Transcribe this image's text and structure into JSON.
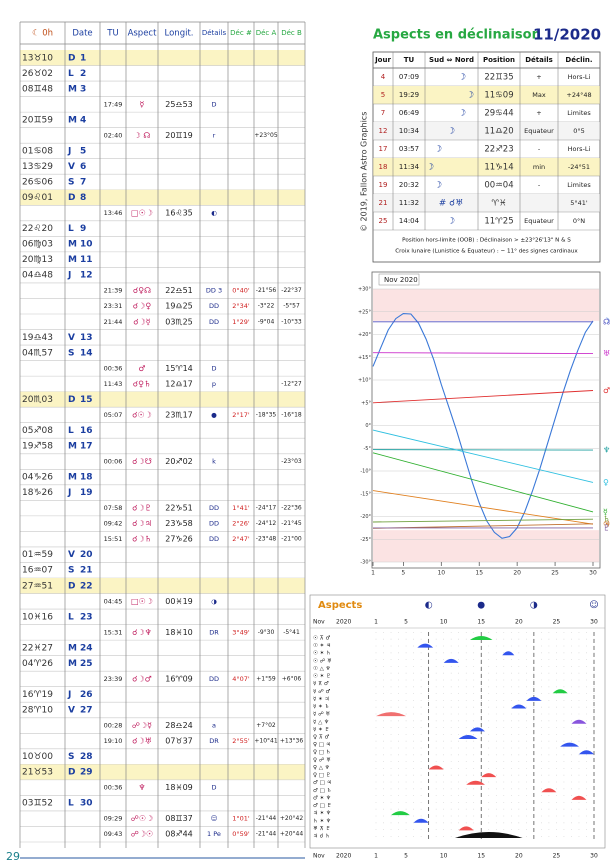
{
  "page_number": 29,
  "copyright": "© 2019, Fallon Astro Graphics",
  "table": {
    "headers": {
      "moon": "☾ 0h",
      "date": "Date",
      "tu": "TU",
      "aspect": "Aspect",
      "longit": "Longit.",
      "details": "Détails",
      "dec": "Déc #",
      "dec_a": "Déc A",
      "dec_b": "Déc B"
    },
    "rows": [
      {
        "moon": "13♉10",
        "weekday": "D",
        "day": 1,
        "highlight": true
      },
      {
        "moon": "26♉02",
        "weekday": "L",
        "day": 2
      },
      {
        "moon": "08♊48",
        "weekday": "M",
        "day": 3
      },
      {
        "tu": "17:49",
        "aspect": "☿",
        "longit": "25♎53",
        "details": "D"
      },
      {
        "moon": "20♊59",
        "weekday": "M",
        "day": 4
      },
      {
        "tu": "02:40",
        "aspect": "☽ ☊",
        "longit": "20♊19",
        "details": "r",
        "dec_a": "+23°05"
      },
      {
        "moon": "01♋08",
        "weekday": "J",
        "day": 5
      },
      {
        "moon": "13♋29",
        "weekday": "V",
        "day": 6
      },
      {
        "moon": "26♋06",
        "weekday": "S",
        "day": 7
      },
      {
        "moon": "09♌01",
        "weekday": "D",
        "day": 8,
        "highlight": true
      },
      {
        "tu": "13:46",
        "aspect": "□☉☽",
        "longit": "16♌35",
        "details": "◐"
      },
      {
        "moon": "22♌20",
        "weekday": "L",
        "day": 9
      },
      {
        "moon": "06♍03",
        "weekday": "M",
        "day": 10
      },
      {
        "moon": "20♍13",
        "weekday": "M",
        "day": 11
      },
      {
        "moon": "04♎48",
        "weekday": "J",
        "day": 12
      },
      {
        "tu": "21:39",
        "aspect": "☌♀☊",
        "longit": "22♎51",
        "details": "DD 3",
        "dec": "0°40'",
        "dec_a": "-21°56",
        "dec_b": "-22°37"
      },
      {
        "tu": "23:31",
        "aspect": "☌☽♀",
        "longit": "19♎25",
        "details": "DD",
        "dec": "2°34'",
        "dec_a": "-3°22",
        "dec_b": "-5°57"
      },
      {
        "tu": "21:44",
        "aspect": "☌☽☿",
        "longit": "03♏25",
        "details": "DD",
        "dec": "1°29'",
        "dec_a": "-9°04",
        "dec_b": "-10°33"
      },
      {
        "moon": "19♎43",
        "weekday": "V",
        "day": 13
      },
      {
        "moon": "04♏57",
        "weekday": "S",
        "day": 14
      },
      {
        "tu": "00:36",
        "aspect": "♂",
        "longit": "15♈14",
        "details": "D"
      },
      {
        "tu": "11:43",
        "aspect": "☌♀♄",
        "longit": "12♎17",
        "details": "p",
        "dec_b": "-12°27"
      },
      {
        "moon": "20♏03",
        "weekday": "D",
        "day": 15,
        "highlight": true
      },
      {
        "tu": "05:07",
        "aspect": "☌☉☽",
        "longit": "23♏17",
        "details": "●",
        "dec": "2°17'",
        "dec_a": "-18°35",
        "dec_b": "-16°18"
      },
      {
        "moon": "05♐08",
        "weekday": "L",
        "day": 16
      },
      {
        "moon": "19♐58",
        "weekday": "M",
        "day": 17
      },
      {
        "tu": "00:06",
        "aspect": "☌☽☋",
        "longit": "20♐02",
        "details": "k",
        "dec_b": "-23°03"
      },
      {
        "moon": "04♑26",
        "weekday": "M",
        "day": 18
      },
      {
        "moon": "18♑26",
        "weekday": "J",
        "day": 19
      },
      {
        "tu": "07:58",
        "aspect": "☌☽♇",
        "longit": "22♑51",
        "details": "DD",
        "dec": "1°41'",
        "dec_a": "-24°17",
        "dec_b": "-22°36"
      },
      {
        "tu": "09:42",
        "aspect": "☌☽♃",
        "longit": "23♑58",
        "details": "DD",
        "dec": "2°26'",
        "dec_a": "-24°12",
        "dec_b": "-21°45"
      },
      {
        "tu": "15:51",
        "aspect": "☌☽♄",
        "longit": "27♑26",
        "details": "DD",
        "dec": "2°47'",
        "dec_a": "-23°48",
        "dec_b": "-21°00"
      },
      {
        "moon": "01♒59",
        "weekday": "V",
        "day": 20
      },
      {
        "moon": "16♒07",
        "weekday": "S",
        "day": 21
      },
      {
        "moon": "27♒51",
        "weekday": "D",
        "day": 22,
        "highlight": true
      },
      {
        "tu": "04:45",
        "aspect": "□☉☽",
        "longit": "00♓19",
        "details": "◑"
      },
      {
        "moon": "10♓16",
        "weekday": "L",
        "day": 23
      },
      {
        "tu": "15:31",
        "aspect": "☌☽♆",
        "longit": "18♓10",
        "details": "DR",
        "dec": "3°49'",
        "dec_a": "-9°30",
        "dec_b": "-5°41"
      },
      {
        "moon": "22♓27",
        "weekday": "M",
        "day": 24
      },
      {
        "moon": "04♈26",
        "weekday": "M",
        "day": 25
      },
      {
        "tu": "23:39",
        "aspect": "☌☽♂",
        "longit": "16♈09",
        "details": "DD",
        "dec": "4°07'",
        "dec_a": "+1°59",
        "dec_b": "+6°06"
      },
      {
        "moon": "16♈19",
        "weekday": "J",
        "day": 26
      },
      {
        "moon": "28♈10",
        "weekday": "V",
        "day": 27
      },
      {
        "tu": "00:28",
        "aspect": "☍☽☿",
        "longit": "28♎24",
        "details": "a",
        "dec_a": "+7°02"
      },
      {
        "tu": "19:10",
        "aspect": "☌☽♅",
        "longit": "07♉37",
        "details": "DR",
        "dec": "2°55'",
        "dec_a": "+10°41",
        "dec_b": "+13°36"
      },
      {
        "moon": "10♉00",
        "weekday": "S",
        "day": 28
      },
      {
        "moon": "21♉53",
        "weekday": "D",
        "day": 29,
        "highlight": true
      },
      {
        "tu": "00:36",
        "aspect": "♆",
        "longit": "18♓09",
        "details": "D"
      },
      {
        "moon": "03♊52",
        "weekday": "L",
        "day": 30
      },
      {
        "tu": "09:29",
        "aspect": "☍☉☽",
        "longit": "08♊37",
        "details": "☺",
        "dec": "1°01'",
        "dec_a": "-21°44",
        "dec_b": "+20°42"
      },
      {
        "tu": "09:43",
        "aspect": "☍☽☉",
        "longit": "08♐44",
        "details": "1 Pe",
        "dec": "0°59'",
        "dec_a": "-21°44",
        "dec_b": "+20°44"
      }
    ]
  },
  "declination_table": {
    "title": "Aspects en déclinaison",
    "period": "11/2020",
    "headers": {
      "jour": "Jour",
      "tu": "TU",
      "sud_nord": "Sud ⇔ Nord",
      "position": "Position",
      "details": "Détails",
      "declin": "Déclin."
    },
    "rows": [
      {
        "jour": 4,
        "tu": "07:09",
        "sud_nord": "☽",
        "position": "22♊35",
        "details": "+",
        "declin": "Hors-Li"
      },
      {
        "jour": 5,
        "tu": "19:29",
        "sud_nord": "☽",
        "position": "11♋09",
        "details": "Max",
        "declin": "+24°48",
        "highlight": true
      },
      {
        "jour": 7,
        "tu": "06:49",
        "sud_nord": "☽",
        "position": "29♋44",
        "details": "+",
        "declin": "Limites"
      },
      {
        "jour": 12,
        "tu": "10:34",
        "sud_nord": "☽",
        "position": "11♎20",
        "details": "Equateur",
        "declin": "0°5"
      },
      {
        "jour": 17,
        "tu": "03:57",
        "sud_nord": "☽",
        "position": "22♐23",
        "details": "-",
        "declin": "Hors-Li"
      },
      {
        "jour": 18,
        "tu": "11:34",
        "sud_nord": "☽",
        "position": "11♑14",
        "details": "min",
        "declin": "-24°51",
        "highlight": true
      },
      {
        "jour": 19,
        "tu": "20:32",
        "sud_nord": "☽",
        "position": "00♒04",
        "details": "-",
        "declin": "Limites"
      },
      {
        "jour": 21,
        "tu": "11:32",
        "sud_nord": "# ☌♅",
        "position": "♈♓",
        "declin": "5°41'"
      },
      {
        "jour": 25,
        "tu": "14:04",
        "sud_nord": "☽",
        "position": "11♈25",
        "details": "Equateur",
        "declin": "0°N"
      }
    ],
    "notes": [
      "Position hors-limite (OOB) : Déclinaison > ±23°26'13\" N & S",
      "Croix lunaire (Lunistice & Equateur) : ~ 11° des signes cardinaux"
    ]
  },
  "chart_data": [
    {
      "type": "line",
      "title": "Nov 2020",
      "x": [
        1,
        2,
        3,
        4,
        5,
        6,
        7,
        8,
        9,
        10,
        11,
        12,
        13,
        14,
        15,
        16,
        17,
        18,
        19,
        20,
        21,
        22,
        23,
        24,
        25,
        26,
        27,
        28,
        29,
        30
      ],
      "xlim": [
        1,
        30
      ],
      "xticks": [
        1,
        5,
        10,
        15,
        20,
        25,
        30
      ],
      "ylim": [
        -30,
        30
      ],
      "yticks": [
        {
          "value": 30,
          "label": "+30°"
        },
        {
          "value": 25,
          "label": "+25°"
        },
        {
          "value": 20,
          "label": "+20°"
        },
        {
          "value": 15,
          "label": "+15°"
        },
        {
          "value": 10,
          "label": "+10°"
        },
        {
          "value": 5,
          "label": "+5°"
        },
        {
          "value": 0,
          "label": "0°"
        },
        {
          "value": -5,
          "label": "-5°"
        },
        {
          "value": -10,
          "label": "-10°"
        },
        {
          "value": -15,
          "label": "-15°"
        },
        {
          "value": -20,
          "label": "-20°"
        },
        {
          "value": -25,
          "label": "-25°"
        },
        {
          "value": -30,
          "label": "-30°"
        }
      ],
      "series": [
        {
          "name": "☽",
          "color": "#3a78d8",
          "values": [
            13,
            17,
            21,
            23.5,
            24.6,
            24.5,
            22.5,
            19,
            14.5,
            9,
            4,
            -1,
            -6.5,
            -12,
            -17,
            -21,
            -23.5,
            -24.8,
            -24.4,
            -22.5,
            -19,
            -14.5,
            -9.5,
            -4,
            1.5,
            7,
            12,
            16.5,
            20.5,
            23
          ]
        },
        {
          "name": "☊",
          "color": "#5050c0",
          "x": [
            1,
            30
          ],
          "values": [
            22.8,
            22.8
          ]
        },
        {
          "name": "♅",
          "color": "#cc33cc",
          "x": [
            1,
            30
          ],
          "values": [
            16,
            15.8
          ]
        },
        {
          "name": "♂",
          "color": "#e03030",
          "x": [
            1,
            30
          ],
          "values": [
            5,
            7.7
          ]
        },
        {
          "name": "♆",
          "color": "#20a0a0",
          "x": [
            1,
            30
          ],
          "values": [
            -5.3,
            -5.4
          ]
        },
        {
          "name": "♀",
          "color": "#30c0e0",
          "x": [
            1,
            30
          ],
          "values": [
            -1,
            -12.5
          ]
        },
        {
          "name": "☿",
          "color": "#30b030",
          "x": [
            1,
            30
          ],
          "values": [
            -6,
            -19
          ]
        },
        {
          "name": "☉",
          "color": "#e08020",
          "x": [
            1,
            30
          ],
          "values": [
            -14.3,
            -21.7
          ]
        },
        {
          "name": "♄",
          "color": "#70a040",
          "x": [
            1,
            30
          ],
          "values": [
            -21.2,
            -20.6
          ]
        },
        {
          "name": "♃",
          "color": "#c07030",
          "x": [
            1,
            30
          ],
          "values": [
            -22.6,
            -21.6
          ]
        },
        {
          "name": "♇",
          "color": "#8060a0",
          "x": [
            1,
            30
          ],
          "values": [
            -22.5,
            -22.5
          ]
        }
      ]
    },
    {
      "type": "timeline",
      "title": "Aspects",
      "month": "Nov",
      "year": 2020,
      "xlim": [
        1,
        30
      ],
      "xticks": [
        1,
        5,
        10,
        15,
        20,
        25,
        30
      ],
      "phases": [
        {
          "symbol": "◐",
          "day": 8
        },
        {
          "symbol": "●",
          "day": 15
        },
        {
          "symbol": "◑",
          "day": 22
        },
        {
          "symbol": "☺",
          "day": 30
        }
      ],
      "rows": [
        {
          "label": "☉ ⊼ ♂",
          "start": 13.5,
          "end": 16.5,
          "color": "#22cc44"
        },
        {
          "label": "☉ ✶ ♃",
          "start": 6.5,
          "end": 8.6,
          "color": "#3355ee"
        },
        {
          "label": "☉ ✶ ♄",
          "start": 17.8,
          "end": 19.4,
          "color": "#3355ee"
        },
        {
          "label": "☉ ☍ ♅",
          "start": 10,
          "end": 12,
          "color": "#3355ee"
        },
        {
          "label": "☉ △ ♆"
        },
        {
          "label": "☉ ✶ ♇"
        },
        {
          "label": "☿ ⊼ ♂"
        },
        {
          "label": "☿ ☍ ♂",
          "start": 24.5,
          "end": 26.5,
          "color": "#22cc44"
        },
        {
          "label": "☿ ✶ ♃",
          "start": 21,
          "end": 23,
          "color": "#3355ee"
        },
        {
          "label": "☿ ✶ ♄",
          "start": 19,
          "end": 21,
          "color": "#3355ee"
        },
        {
          "label": "☿ ☍ ♅",
          "start": 1,
          "end": 5,
          "color": "#f07070"
        },
        {
          "label": "☿ △ ♆",
          "start": 27,
          "end": 29,
          "color": "#8855dd"
        },
        {
          "label": "☿ ✶ ♇",
          "start": 13.5,
          "end": 15.5,
          "color": "#3355ee"
        },
        {
          "label": "♀ ⊼ ♂",
          "start": 12,
          "end": 14.5,
          "color": "#3355ee"
        },
        {
          "label": "♀ □ ♃",
          "start": 25.5,
          "end": 28,
          "color": "#3355ee"
        },
        {
          "label": "♀ □ ♄",
          "start": 28,
          "end": 30,
          "color": "#3355ee"
        },
        {
          "label": "♀ ☍ ♅"
        },
        {
          "label": "♀ △ ♆",
          "start": 8,
          "end": 10,
          "color": "#f05050"
        },
        {
          "label": "♀ □ ♇",
          "start": 15,
          "end": 17,
          "color": "#f05050"
        },
        {
          "label": "♂ □ ♃",
          "start": 13,
          "end": 15.5,
          "color": "#f05050"
        },
        {
          "label": "♂ □ ♄",
          "start": 23,
          "end": 25,
          "color": "#f05050"
        },
        {
          "label": "♂ ✶ ♆",
          "start": 27,
          "end": 29,
          "color": "#f05050"
        },
        {
          "label": "♂ □ ♇"
        },
        {
          "label": "♃ ✶ ♆",
          "start": 3,
          "end": 5.5,
          "color": "#22cc44"
        },
        {
          "label": "♄ ✶ ♆",
          "start": 6,
          "end": 8,
          "color": "#3355ee"
        },
        {
          "label": "♅ ⊼ ♇",
          "start": 12,
          "end": 14,
          "color": "#f05050"
        },
        {
          "label": "♃ ☌ ♄",
          "start": 11.5,
          "end": 20.5,
          "color": "#111111"
        }
      ]
    }
  ]
}
